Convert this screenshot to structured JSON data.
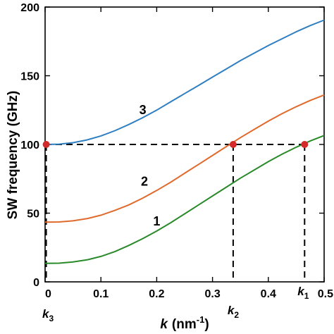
{
  "chart_data": {
    "type": "line",
    "xlabel_main": "k",
    "xlabel_unit": "(nm",
    "xlabel_exp": "-1",
    "xlabel_close": ")",
    "ylabel": "SW frequency (GHz)",
    "xlim": [
      0,
      0.5
    ],
    "ylim": [
      0,
      200
    ],
    "xticks": [
      0,
      0.1,
      0.2,
      0.3,
      0.4,
      0.5
    ],
    "xtick_labels": [
      "0",
      "0.1",
      "0.2",
      "0.3",
      "0.4",
      "0.5"
    ],
    "yticks": [
      0,
      50,
      100,
      150,
      200
    ],
    "ytick_labels": [
      "0",
      "50",
      "100",
      "150",
      "200"
    ],
    "grid": false,
    "series": [
      {
        "label": "1",
        "color": "#2a8a2a",
        "x": [
          0,
          0.025,
          0.05,
          0.075,
          0.1,
          0.125,
          0.15,
          0.175,
          0.2,
          0.225,
          0.25,
          0.275,
          0.3,
          0.325,
          0.35,
          0.375,
          0.4,
          0.425,
          0.45,
          0.475,
          0.5
        ],
        "y": [
          13.5,
          13.6,
          14.5,
          16,
          18.5,
          22,
          26.5,
          31.5,
          37,
          43,
          49.5,
          56,
          62.5,
          69,
          75.5,
          81.5,
          87.5,
          93,
          98,
          102.5,
          106.5
        ]
      },
      {
        "label": "2",
        "color": "#e06a2c",
        "x": [
          0,
          0.025,
          0.05,
          0.075,
          0.1,
          0.125,
          0.15,
          0.175,
          0.2,
          0.225,
          0.25,
          0.275,
          0.3,
          0.325,
          0.35,
          0.375,
          0.4,
          0.425,
          0.45,
          0.475,
          0.5
        ],
        "y": [
          43.5,
          43.6,
          44.4,
          46,
          48.5,
          52,
          56,
          61,
          66.5,
          72.5,
          79,
          85.5,
          92,
          98.5,
          105,
          111,
          117,
          122.5,
          127.5,
          132,
          136
        ]
      },
      {
        "label": "3",
        "color": "#2f7fc1",
        "x": [
          0,
          0.025,
          0.05,
          0.075,
          0.1,
          0.125,
          0.15,
          0.175,
          0.2,
          0.225,
          0.25,
          0.275,
          0.3,
          0.325,
          0.35,
          0.375,
          0.4,
          0.425,
          0.45,
          0.475,
          0.5
        ],
        "y": [
          100,
          100.2,
          101.3,
          103.3,
          106.2,
          110,
          114.5,
          119.5,
          125,
          131,
          137,
          143,
          149,
          155,
          161,
          166.5,
          172,
          177,
          182,
          186.5,
          190.5
        ]
      }
    ],
    "reference_line": {
      "y": 100,
      "color": "#000000",
      "style": "dashed"
    },
    "markers": [
      {
        "name": "k3",
        "x": 0.002,
        "y": 100,
        "label": "k",
        "sub": "3"
      },
      {
        "name": "k2",
        "x": 0.337,
        "y": 100,
        "label": "k",
        "sub": "2"
      },
      {
        "name": "k1",
        "x": 0.465,
        "y": 100,
        "label": "k",
        "sub": "1"
      }
    ],
    "marker_color": "#d42a2a",
    "curve_labels": [
      {
        "text": "1",
        "x": 0.2,
        "y": 41
      },
      {
        "text": "2",
        "x": 0.178,
        "y": 70
      },
      {
        "text": "3",
        "x": 0.175,
        "y": 122
      }
    ]
  }
}
